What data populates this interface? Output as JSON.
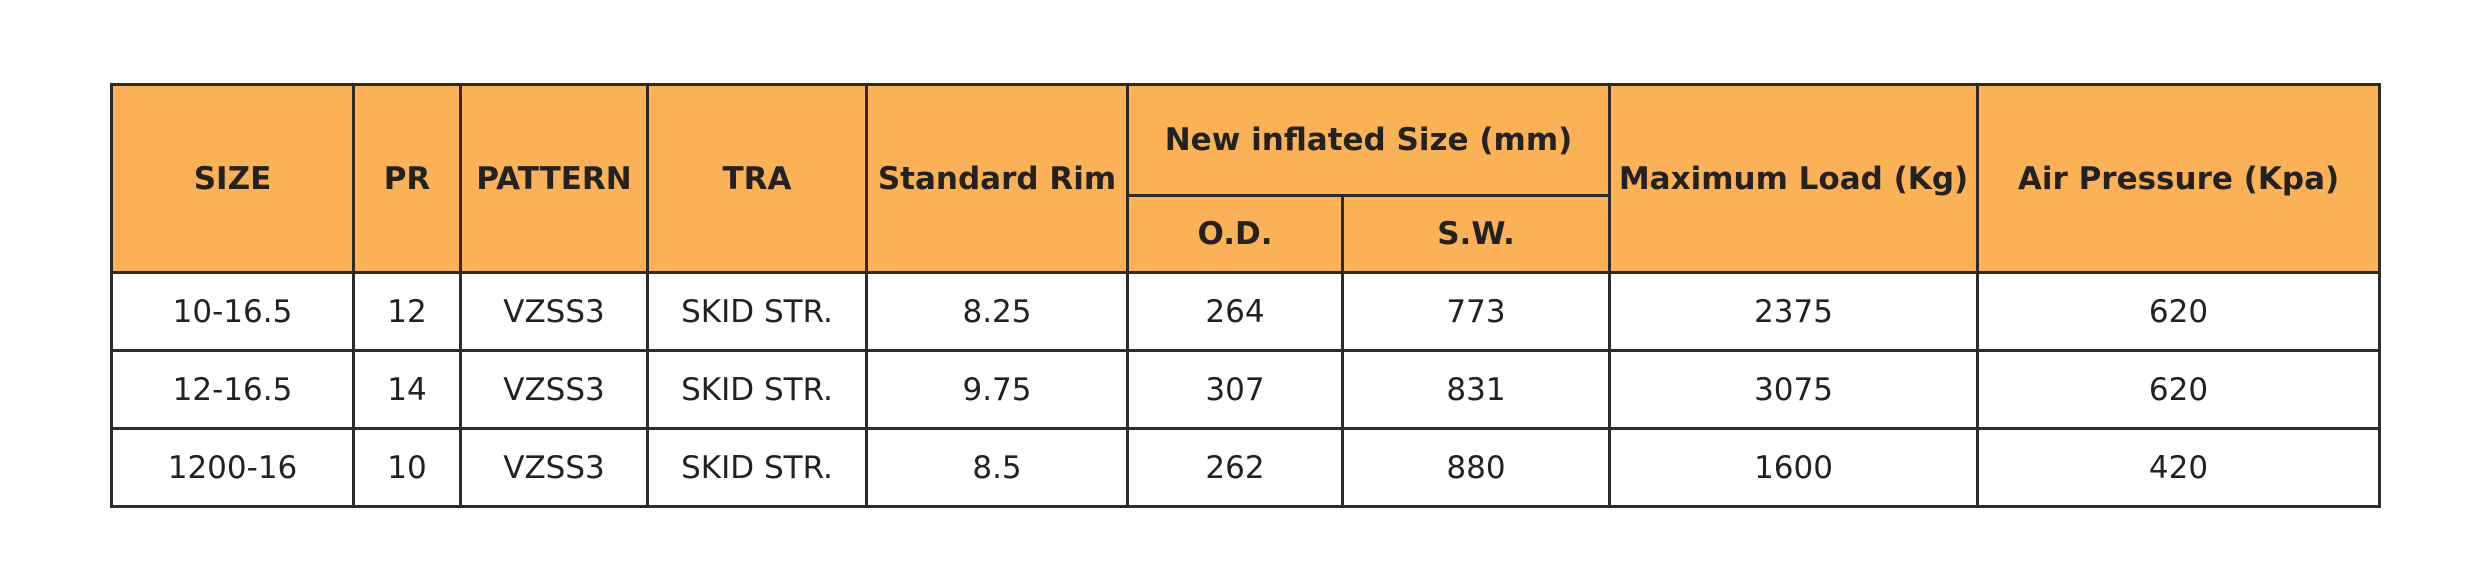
{
  "table": {
    "header": {
      "size": "SIZE",
      "pr": "PR",
      "pattern": "PATTERN",
      "tra": "TRA",
      "rim": "Standard Rim",
      "inflated": "New inflated Size (mm)",
      "od": "O.D.",
      "sw": "S.W.",
      "load": "Maximum Load (Kg)",
      "pressure": "Air Pressure (Kpa)"
    },
    "rows": [
      [
        "10-16.5",
        "12",
        "VZSS3",
        "SKID STR.",
        "8.25",
        "264",
        "773",
        "2375",
        "620"
      ],
      [
        "12-16.5",
        "14",
        "VZSS3",
        "SKID STR.",
        "9.75",
        "307",
        "831",
        "3075",
        "620"
      ],
      [
        "1200-16",
        "10",
        "VZSS3",
        "SKID STR.",
        "8.5",
        "262",
        "880",
        "1600",
        "420"
      ]
    ]
  }
}
